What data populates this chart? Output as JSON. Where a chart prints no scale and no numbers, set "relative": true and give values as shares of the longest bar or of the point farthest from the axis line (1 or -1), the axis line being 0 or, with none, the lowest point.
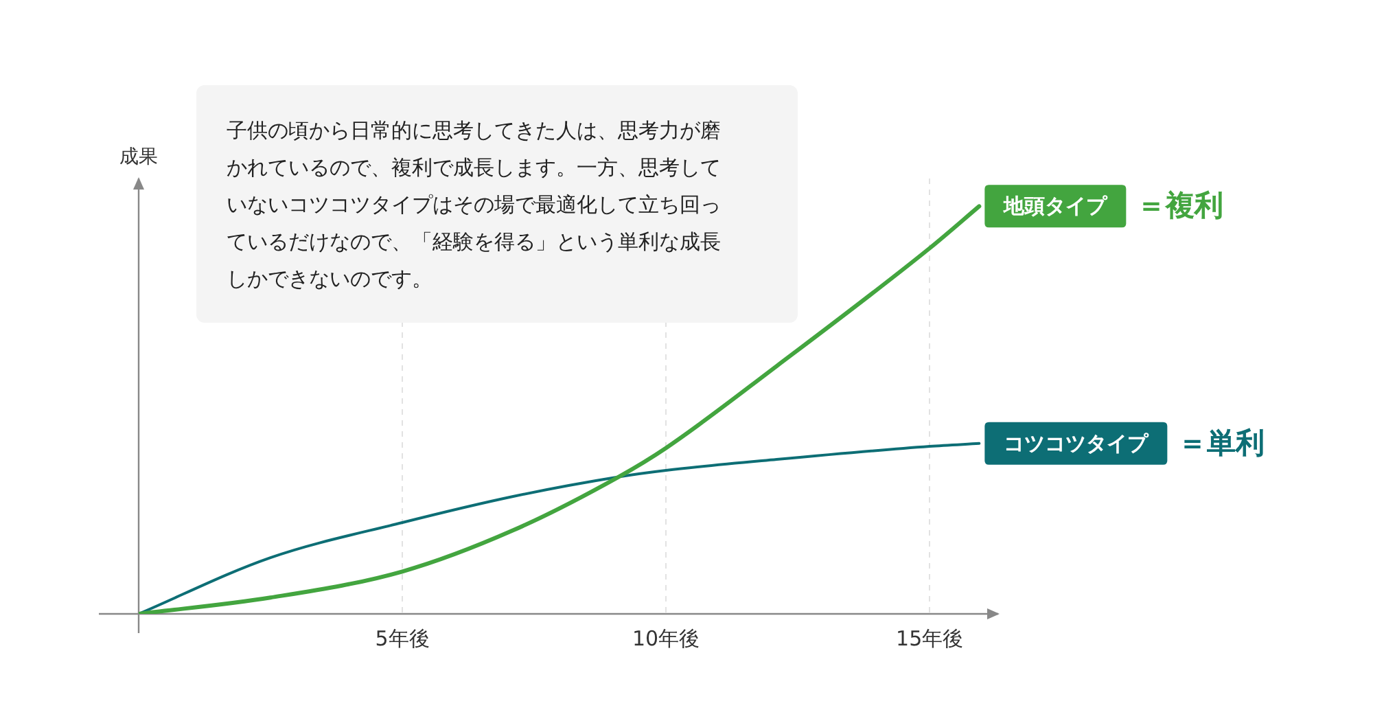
{
  "chart_data": {
    "type": "line",
    "relative": true,
    "ylabel": "成果",
    "x": [
      0,
      2.5,
      5,
      7.1,
      9.1,
      10,
      12.1,
      15,
      15.94
    ],
    "xlim": [
      0,
      16.3
    ],
    "xticks": [
      {
        "value": 5,
        "label": "5年後"
      },
      {
        "value": 10,
        "label": "10年後"
      },
      {
        "value": 15,
        "label": "15年後"
      }
    ],
    "series": [
      {
        "name": "地頭タイプ",
        "color": "#43a53f",
        "values": [
          0,
          0.04,
          0.104,
          0.205,
          0.336,
          0.407,
          0.608,
          0.897,
          1
        ]
      },
      {
        "name": "コツコツタイプ",
        "color": "#0d6e75",
        "values": [
          0,
          0.138,
          0.224,
          0.288,
          0.336,
          0.352,
          0.379,
          0.411,
          0.418
        ]
      }
    ],
    "annotations": [
      "子供の頃から日常的に思考してきた人は、思考力が磨かれているので、複利で成長します。一方、思考していないコツコツタイプはその場で最適化して立ち回っているだけなので、「経験を得る」という単利な成長しかできないのです。",
      "＝複利",
      "＝単利"
    ],
    "grid": "x",
    "legend": false,
    "marker": "none",
    "line_style": "solid"
  }
}
